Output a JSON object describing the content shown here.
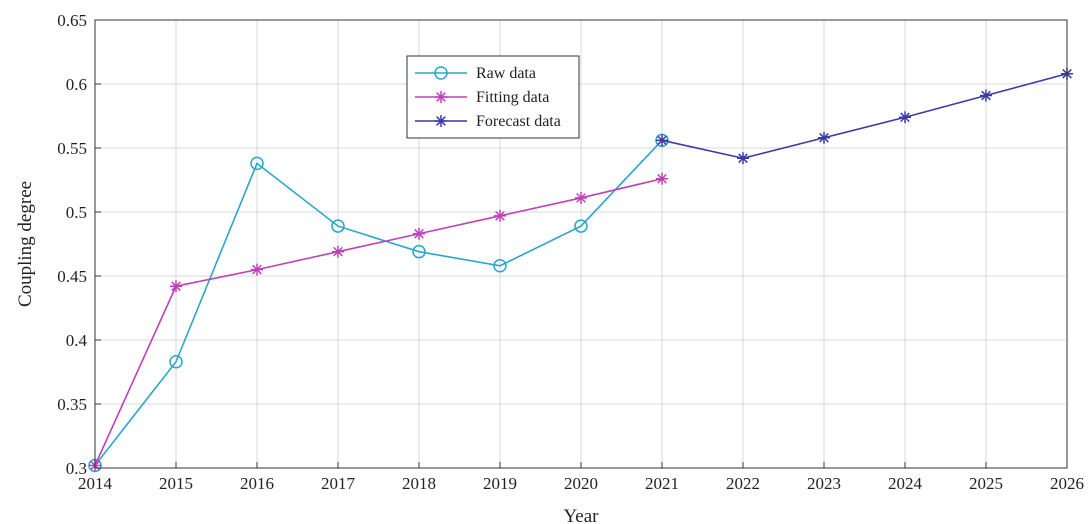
{
  "chart_data": {
    "type": "line",
    "title": "",
    "xlabel": "Year",
    "ylabel": "Coupling degree",
    "xlim": [
      2014,
      2026
    ],
    "ylim": [
      0.3,
      0.65
    ],
    "x_ticks": [
      "2014",
      "2015",
      "2016",
      "2017",
      "2018",
      "2019",
      "2020",
      "2021",
      "2022",
      "2023",
      "2024",
      "2025",
      "2026"
    ],
    "y_ticks": [
      "0.3",
      "0.35",
      "0.4",
      "0.45",
      "0.5",
      "0.55",
      "0.6",
      "0.65"
    ],
    "grid": true,
    "legend_position": "top-center",
    "series": [
      {
        "name": "Raw data",
        "marker": "circle",
        "color": "#2aa6c9",
        "x": [
          2014,
          2015,
          2016,
          2017,
          2018,
          2019,
          2020,
          2021
        ],
        "y": [
          0.302,
          0.383,
          0.538,
          0.489,
          0.469,
          0.458,
          0.489,
          0.556
        ]
      },
      {
        "name": "Fitting data",
        "marker": "asterisk",
        "color": "#c040b8",
        "x": [
          2014,
          2015,
          2016,
          2017,
          2018,
          2019,
          2020,
          2021
        ],
        "y": [
          0.302,
          0.442,
          0.455,
          0.469,
          0.483,
          0.497,
          0.511,
          0.526
        ]
      },
      {
        "name": "Forecast data",
        "marker": "asterisk",
        "color": "#3a3aa8",
        "x": [
          2021,
          2022,
          2023,
          2024,
          2025,
          2026
        ],
        "y": [
          0.556,
          0.542,
          0.558,
          0.574,
          0.591,
          0.608
        ]
      }
    ]
  }
}
